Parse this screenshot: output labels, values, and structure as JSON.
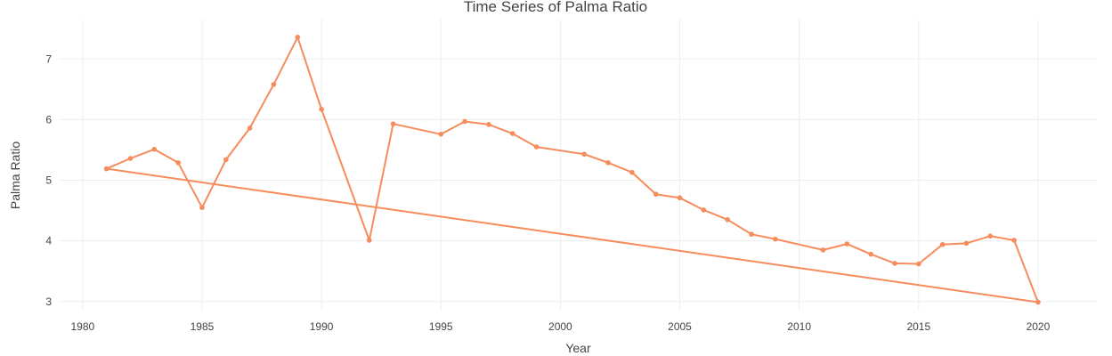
{
  "chart_data": {
    "type": "line",
    "title": "Time Series of Palma Ratio",
    "xlabel": "Year",
    "ylabel": "Palma Ratio",
    "xlim": [
      1979,
      2022.5
    ],
    "ylim": [
      2.85,
      7.65
    ],
    "xticks": [
      1980,
      1985,
      1990,
      1995,
      2000,
      2005,
      2010,
      2015,
      2020
    ],
    "yticks": [
      3,
      4,
      5,
      6,
      7
    ],
    "grid": true,
    "legend": "none",
    "series": [
      {
        "color": "#F68C5C",
        "points": [
          [
            1981,
            5.19
          ],
          [
            1982,
            5.36
          ],
          [
            1983,
            5.51
          ],
          [
            1984,
            5.29
          ],
          [
            1985,
            4.55
          ],
          [
            1986,
            5.34
          ],
          [
            1987,
            5.86
          ],
          [
            1988,
            6.58
          ],
          [
            1989,
            7.36
          ],
          [
            1990,
            6.17
          ],
          [
            1992,
            4.01
          ],
          [
            1993,
            5.93
          ],
          [
            1995,
            5.76
          ],
          [
            1996,
            5.97
          ],
          [
            1997,
            5.92
          ],
          [
            1998,
            5.77
          ],
          [
            1999,
            5.55
          ],
          [
            2001,
            5.43
          ],
          [
            2002,
            5.29
          ],
          [
            2003,
            5.13
          ],
          [
            2004,
            4.77
          ],
          [
            2005,
            4.71
          ],
          [
            2006,
            4.51
          ],
          [
            2007,
            4.35
          ],
          [
            2008,
            4.11
          ],
          [
            2009,
            4.03
          ],
          [
            2011,
            3.85
          ],
          [
            2012,
            3.95
          ],
          [
            2013,
            3.78
          ],
          [
            2014,
            3.63
          ],
          [
            2015,
            3.62
          ],
          [
            2016,
            3.94
          ],
          [
            2017,
            3.96
          ],
          [
            2018,
            4.08
          ],
          [
            2019,
            4.01
          ],
          [
            2020,
            2.99
          ],
          [
            1981,
            5.19
          ]
        ]
      }
    ]
  }
}
